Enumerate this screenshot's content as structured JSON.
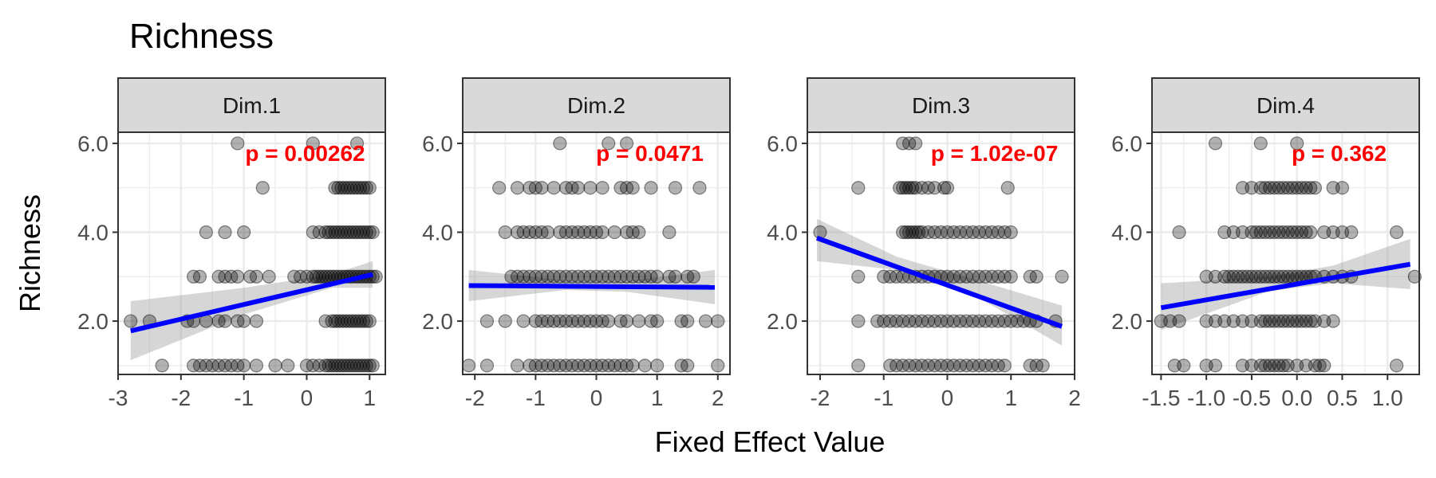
{
  "chart_data": {
    "type": "scatter",
    "title": "Richness",
    "xlabel": "Fixed Effect Value",
    "ylabel": "Richness",
    "ylim": [
      0.8,
      6.25
    ],
    "yticks": [
      2.0,
      4.0,
      6.0
    ],
    "ytick_labels": [
      "2.0",
      "4.0",
      "6.0"
    ],
    "grid": true,
    "colors": {
      "points": "#000000",
      "fit_line": "#0000ff",
      "ci_band": "#999999",
      "p_value": "#ff0000",
      "strip_fill": "#d9d9d9",
      "panel_grid": "#ebebeb"
    },
    "panels": [
      {
        "facet": "Dim.1",
        "p_label": "p = 0.00262",
        "xlim": [
          -3.0,
          1.25
        ],
        "xticks": [
          -3,
          -2,
          -1,
          0,
          1
        ],
        "xtick_labels": [
          "-3",
          "-2",
          "-1",
          "0",
          "1"
        ],
        "fit": {
          "x": [
            -2.8,
            1.05
          ],
          "y": [
            1.78,
            3.05
          ]
        },
        "ci": {
          "x": [
            -2.8,
            -1.0,
            0.4,
            1.05
          ],
          "upper": [
            2.45,
            2.75,
            3.05,
            3.35
          ],
          "lower": [
            1.12,
            2.15,
            2.75,
            2.75
          ]
        },
        "rows": [
          {
            "y": 6,
            "x": [
              -1.1,
              0.1,
              0.8
            ]
          },
          {
            "y": 5,
            "x": [
              -0.7,
              0.45,
              0.5,
              0.55,
              0.6,
              0.65,
              0.7,
              0.75,
              0.8,
              0.85,
              0.9,
              0.95,
              1.0
            ]
          },
          {
            "y": 4,
            "x": [
              -1.6,
              -1.3,
              -1.0,
              0.1,
              0.2,
              0.3,
              0.35,
              0.4,
              0.45,
              0.5,
              0.55,
              0.6,
              0.65,
              0.7,
              0.75,
              0.8,
              0.85,
              0.9,
              0.95,
              1.0,
              1.05
            ]
          },
          {
            "y": 3,
            "x": [
              -1.8,
              -1.7,
              -1.4,
              -1.3,
              -1.2,
              -1.1,
              -0.9,
              -0.8,
              -0.6,
              -0.2,
              -0.1,
              0.0,
              0.1,
              0.15,
              0.2,
              0.25,
              0.3,
              0.35,
              0.4,
              0.45,
              0.5,
              0.55,
              0.6,
              0.65,
              0.7,
              0.75,
              0.8,
              0.85,
              0.9,
              0.95,
              1.0,
              1.05,
              1.1
            ]
          },
          {
            "y": 2,
            "x": [
              -2.8,
              -2.5,
              -1.9,
              -1.8,
              -1.6,
              -1.4,
              -1.3,
              -1.1,
              -1.0,
              -0.8,
              0.3,
              0.4,
              0.45,
              0.5,
              0.55,
              0.6,
              0.65,
              0.7,
              0.75,
              0.8,
              0.85,
              0.9,
              0.95,
              1.0
            ]
          },
          {
            "y": 1,
            "x": [
              -2.3,
              -1.8,
              -1.7,
              -1.6,
              -1.5,
              -1.4,
              -1.3,
              -1.2,
              -1.1,
              -1.0,
              -0.8,
              -0.5,
              -0.3,
              0.0,
              0.1,
              0.2,
              0.3,
              0.35,
              0.4,
              0.45,
              0.5,
              0.55,
              0.6,
              0.65,
              0.7,
              0.75,
              0.8,
              0.85,
              0.9,
              0.95,
              1.0,
              1.05
            ]
          }
        ]
      },
      {
        "facet": "Dim.2",
        "p_label": "p = 0.0471",
        "xlim": [
          -2.2,
          2.2
        ],
        "xticks": [
          -2,
          -1,
          0,
          1,
          2
        ],
        "xtick_labels": [
          "-2",
          "-1",
          "0",
          "1",
          "2"
        ],
        "fit": {
          "x": [
            -2.1,
            1.95
          ],
          "y": [
            2.8,
            2.76
          ]
        },
        "ci": {
          "x": [
            -2.1,
            -0.5,
            0.5,
            1.95
          ],
          "upper": [
            3.15,
            2.92,
            2.9,
            3.15
          ],
          "lower": [
            2.45,
            2.7,
            2.66,
            2.38
          ]
        },
        "rows": [
          {
            "y": 6,
            "x": [
              -0.6,
              0.2,
              0.5
            ]
          },
          {
            "y": 5,
            "x": [
              -1.6,
              -1.3,
              -1.1,
              -1.0,
              -0.9,
              -0.7,
              -0.5,
              -0.4,
              -0.3,
              -0.1,
              0.1,
              0.4,
              0.5,
              0.6,
              0.9,
              1.3,
              1.7
            ]
          },
          {
            "y": 4,
            "x": [
              -1.5,
              -1.3,
              -1.2,
              -1.1,
              -1.0,
              -0.9,
              -0.8,
              -0.6,
              -0.5,
              -0.4,
              -0.3,
              -0.2,
              -0.1,
              0.0,
              0.1,
              0.3,
              0.5,
              0.6,
              0.7,
              1.2
            ]
          },
          {
            "y": 3,
            "x": [
              -1.4,
              -1.3,
              -1.2,
              -1.1,
              -1.0,
              -0.9,
              -0.8,
              -0.7,
              -0.6,
              -0.5,
              -0.4,
              -0.3,
              -0.2,
              -0.1,
              0.0,
              0.1,
              0.2,
              0.3,
              0.4,
              0.5,
              0.6,
              0.7,
              0.8,
              0.9,
              1.0,
              1.2,
              1.3,
              1.5,
              1.6
            ]
          },
          {
            "y": 2,
            "x": [
              -1.8,
              -1.5,
              -1.2,
              -1.0,
              -0.9,
              -0.8,
              -0.7,
              -0.6,
              -0.5,
              -0.4,
              -0.3,
              -0.2,
              -0.1,
              0.0,
              0.1,
              0.2,
              0.4,
              0.5,
              0.7,
              0.9,
              1.0,
              1.4,
              1.5,
              1.8,
              2.0
            ]
          },
          {
            "y": 1,
            "x": [
              -2.1,
              -1.8,
              -1.3,
              -1.1,
              -1.0,
              -0.9,
              -0.8,
              -0.7,
              -0.6,
              -0.5,
              -0.4,
              -0.3,
              -0.2,
              -0.1,
              0.0,
              0.1,
              0.2,
              0.3,
              0.4,
              0.5,
              0.6,
              0.8,
              1.0,
              1.4,
              1.5,
              2.0
            ]
          }
        ]
      },
      {
        "facet": "Dim.3",
        "p_label": "p = 1.02e-07",
        "xlim": [
          -2.2,
          2.0
        ],
        "xticks": [
          -2,
          -1,
          0,
          1,
          2
        ],
        "xtick_labels": [
          "-2",
          "-1",
          "0",
          "1",
          "2"
        ],
        "fit": {
          "x": [
            -2.05,
            1.8
          ],
          "y": [
            3.87,
            1.88
          ]
        },
        "ci": {
          "x": [
            -2.05,
            -0.8,
            0.4,
            1.8
          ],
          "upper": [
            4.3,
            3.45,
            2.95,
            2.35
          ],
          "lower": [
            3.35,
            3.15,
            2.6,
            1.45
          ]
        },
        "rows": [
          {
            "y": 6,
            "x": [
              -0.7,
              -0.6,
              -0.5
            ]
          },
          {
            "y": 5,
            "x": [
              -1.4,
              -0.75,
              -0.7,
              -0.65,
              -0.6,
              -0.55,
              -0.5,
              -0.4,
              -0.3,
              -0.2,
              -0.05,
              0.0,
              0.95
            ]
          },
          {
            "y": 4,
            "x": [
              -2.0,
              -0.7,
              -0.65,
              -0.6,
              -0.55,
              -0.5,
              -0.45,
              -0.4,
              -0.3,
              -0.2,
              -0.1,
              0.0,
              0.1,
              0.2,
              0.3,
              0.4,
              0.5,
              0.6,
              0.7,
              0.8,
              0.9,
              1.0
            ]
          },
          {
            "y": 3,
            "x": [
              -1.4,
              -1.0,
              -0.9,
              -0.8,
              -0.7,
              -0.6,
              -0.5,
              -0.4,
              -0.3,
              -0.2,
              -0.1,
              0.0,
              0.1,
              0.2,
              0.3,
              0.4,
              0.5,
              0.6,
              0.7,
              0.8,
              0.9,
              1.0,
              1.3,
              1.4,
              1.8
            ]
          },
          {
            "y": 2,
            "x": [
              -1.4,
              -1.1,
              -1.0,
              -0.9,
              -0.8,
              -0.7,
              -0.6,
              -0.5,
              -0.4,
              -0.3,
              -0.2,
              -0.1,
              0.0,
              0.1,
              0.2,
              0.3,
              0.4,
              0.5,
              0.6,
              0.7,
              0.8,
              0.9,
              1.0,
              1.1,
              1.2,
              1.3,
              1.4,
              1.7
            ]
          },
          {
            "y": 1,
            "x": [
              -1.4,
              -0.9,
              -0.8,
              -0.7,
              -0.6,
              -0.5,
              -0.4,
              -0.3,
              -0.2,
              -0.1,
              0.0,
              0.1,
              0.2,
              0.3,
              0.4,
              0.5,
              0.6,
              0.7,
              0.8,
              0.9,
              1.3,
              1.4,
              1.5
            ]
          }
        ]
      },
      {
        "facet": "Dim.4",
        "p_label": "p = 0.362",
        "xlim": [
          -1.6,
          1.35
        ],
        "xticks": [
          -1.5,
          -1.0,
          -0.5,
          0.0,
          0.5,
          1.0
        ],
        "xtick_labels": [
          "-1.5",
          "-1.0",
          "-0.5",
          "0.0",
          "0.5",
          "1.0"
        ],
        "fit": {
          "x": [
            -1.5,
            1.25
          ],
          "y": [
            2.3,
            3.28
          ]
        },
        "ci": {
          "x": [
            -1.5,
            -0.3,
            0.4,
            1.25
          ],
          "upper": [
            2.85,
            3.0,
            3.25,
            3.85
          ],
          "lower": [
            1.8,
            2.68,
            2.85,
            2.72
          ]
        },
        "rows": [
          {
            "y": 6,
            "x": [
              -0.9,
              -0.4,
              0.0
            ]
          },
          {
            "y": 5,
            "x": [
              -0.6,
              -0.5,
              -0.4,
              -0.35,
              -0.3,
              -0.25,
              -0.2,
              -0.15,
              -0.1,
              -0.05,
              0.0,
              0.05,
              0.1,
              0.15,
              0.2,
              0.4,
              0.5
            ]
          },
          {
            "y": 4,
            "x": [
              -1.3,
              -0.8,
              -0.7,
              -0.6,
              -0.5,
              -0.45,
              -0.4,
              -0.35,
              -0.3,
              -0.25,
              -0.2,
              -0.15,
              -0.1,
              -0.05,
              0.0,
              0.05,
              0.1,
              0.15,
              0.3,
              0.4,
              0.5,
              0.6,
              1.1
            ]
          },
          {
            "y": 3,
            "x": [
              -1.0,
              -0.9,
              -0.8,
              -0.75,
              -0.7,
              -0.65,
              -0.6,
              -0.55,
              -0.5,
              -0.45,
              -0.4,
              -0.35,
              -0.3,
              -0.25,
              -0.2,
              -0.15,
              -0.1,
              -0.05,
              0.0,
              0.05,
              0.1,
              0.15,
              0.2,
              0.3,
              0.4,
              0.5,
              0.6,
              1.3
            ]
          },
          {
            "y": 2,
            "x": [
              -1.5,
              -1.4,
              -1.3,
              -1.0,
              -0.9,
              -0.8,
              -0.7,
              -0.6,
              -0.5,
              -0.4,
              -0.35,
              -0.3,
              -0.25,
              -0.2,
              -0.15,
              -0.1,
              -0.05,
              0.0,
              0.05,
              0.1,
              0.15,
              0.2,
              0.3,
              0.4
            ]
          },
          {
            "y": 1,
            "x": [
              -1.35,
              -1.25,
              -1.0,
              -0.9,
              -0.6,
              -0.5,
              -0.4,
              -0.35,
              -0.3,
              -0.25,
              -0.2,
              -0.15,
              -0.1,
              0.0,
              0.1,
              0.2,
              0.25,
              0.3,
              1.1
            ]
          }
        ]
      }
    ]
  }
}
